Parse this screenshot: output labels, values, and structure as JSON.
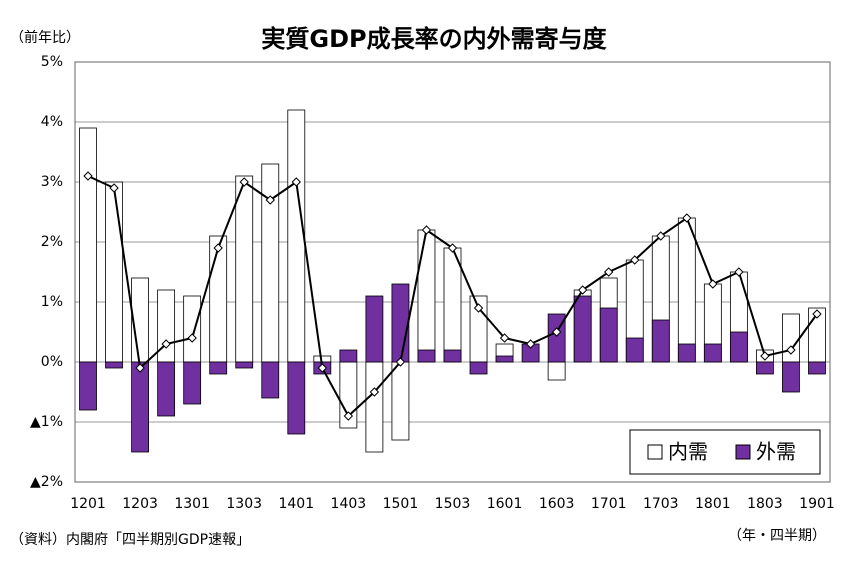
{
  "chart_data": {
    "type": "bar_line",
    "title": "実質GDP成長率の内外需寄与度",
    "y_label": "（前年比）",
    "x_label": "（年・四半期）",
    "source": "（資料）内閣府「四半期別GDP速報」",
    "categories": [
      "1201",
      null,
      "1203",
      null,
      "1301",
      null,
      "1303",
      null,
      "1401",
      null,
      "1403",
      null,
      "1501",
      null,
      "1503",
      null,
      "1601",
      null,
      "1603",
      null,
      "1701",
      null,
      "1703",
      null,
      "1801",
      null,
      "1803",
      null,
      "1901"
    ],
    "series": [
      {
        "name": "内需",
        "color": "#ffffff",
        "kind": "bar",
        "values": [
          3.9,
          3.0,
          1.4,
          1.2,
          1.1,
          2.1,
          3.1,
          3.3,
          4.2,
          0.1,
          -1.1,
          -1.5,
          -1.3,
          2.2,
          1.9,
          1.1,
          0.3,
          0.0,
          -0.3,
          1.2,
          1.4,
          1.7,
          2.1,
          2.4,
          1.3,
          1.5,
          0.2,
          0.8,
          0.9
        ]
      },
      {
        "name": "外需",
        "color": "#7030a0",
        "kind": "bar",
        "values": [
          -0.8,
          -0.1,
          -1.5,
          -0.9,
          -0.7,
          -0.2,
          -0.1,
          -0.6,
          -1.2,
          -0.2,
          0.2,
          1.1,
          1.3,
          0.2,
          0.2,
          -0.2,
          0.1,
          0.3,
          0.8,
          1.1,
          0.9,
          0.4,
          0.7,
          0.3,
          0.3,
          0.5,
          -0.2,
          -0.5,
          -0.2
        ]
      },
      {
        "color": "#000000",
        "kind": "line",
        "values": [
          3.1,
          2.9,
          -0.1,
          0.3,
          0.4,
          1.9,
          3.0,
          2.7,
          3.0,
          -0.1,
          -0.9,
          -0.5,
          0.0,
          2.2,
          1.9,
          0.9,
          0.4,
          0.3,
          0.5,
          1.2,
          1.5,
          1.7,
          2.1,
          2.4,
          1.3,
          1.5,
          0.1,
          0.2,
          0.8
        ]
      }
    ],
    "ylim": [
      -2,
      5
    ],
    "yticks": [
      {
        "value": -2,
        "label": "▲2%"
      },
      {
        "value": -1,
        "label": "▲1%"
      },
      {
        "value": 0,
        "label": "0%"
      },
      {
        "value": 1,
        "label": "1%"
      },
      {
        "value": 2,
        "label": "2%"
      },
      {
        "value": 3,
        "label": "3%"
      },
      {
        "value": 4,
        "label": "4%"
      },
      {
        "value": 5,
        "label": "5%"
      }
    ],
    "grid": true,
    "legend": "lower-right"
  }
}
